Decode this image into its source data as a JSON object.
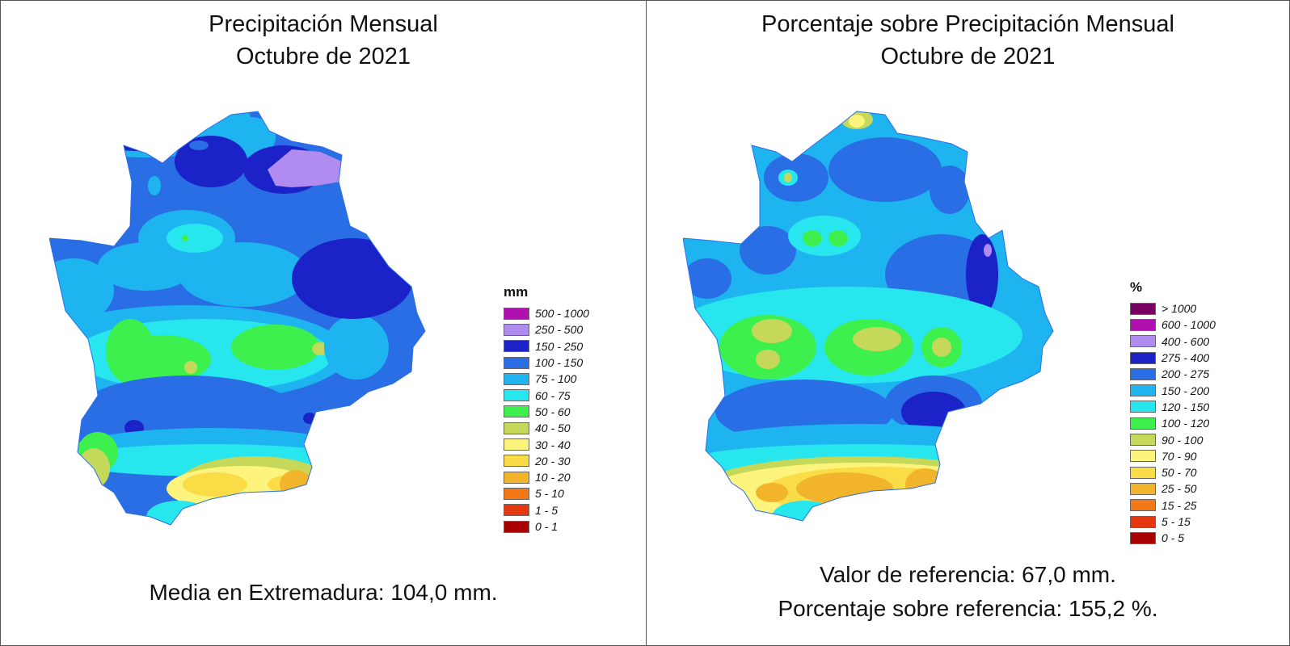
{
  "left": {
    "title_line1": "Precipitación Mensual",
    "title_line2": "Octubre de 2021",
    "legend_title": "mm",
    "legend": [
      {
        "label": "500 - 1000",
        "color": "#b010b0"
      },
      {
        "label": "250 - 500",
        "color": "#b18cf0"
      },
      {
        "label": "150 - 250",
        "color": "#1a22c8"
      },
      {
        "label": "100 - 150",
        "color": "#2a6ee6"
      },
      {
        "label": "75 - 100",
        "color": "#1eb4f0"
      },
      {
        "label": "60 - 75",
        "color": "#28e6ee"
      },
      {
        "label": "50 - 60",
        "color": "#3ef04e"
      },
      {
        "label": "40 - 50",
        "color": "#c6d85a"
      },
      {
        "label": "30 - 40",
        "color": "#fcf47c"
      },
      {
        "label": "20 - 30",
        "color": "#fadc46"
      },
      {
        "label": "10 - 20",
        "color": "#f2b42a"
      },
      {
        "label": "5 - 10",
        "color": "#f27818"
      },
      {
        "label": "1 - 5",
        "color": "#e63810"
      },
      {
        "label": "0 - 1",
        "color": "#a80000"
      }
    ],
    "footer": "Media en Extremadura: 104,0 mm."
  },
  "right": {
    "title_line1": "Porcentaje sobre Precipitación Mensual",
    "title_line2": "Octubre de 2021",
    "legend_title": "%",
    "legend": [
      {
        "label": "> 1000",
        "color": "#780060"
      },
      {
        "label": "600 - 1000",
        "color": "#b010b0"
      },
      {
        "label": "400 - 600",
        "color": "#b18cf0"
      },
      {
        "label": "275 - 400",
        "color": "#1a22c8"
      },
      {
        "label": "200 - 275",
        "color": "#2a6ee6"
      },
      {
        "label": "150 - 200",
        "color": "#1eb4f0"
      },
      {
        "label": "120 - 150",
        "color": "#28e6ee"
      },
      {
        "label": "100 - 120",
        "color": "#3ef04e"
      },
      {
        "label": "90 - 100",
        "color": "#c6d85a"
      },
      {
        "label": "70 - 90",
        "color": "#fcf47c"
      },
      {
        "label": "50 - 70",
        "color": "#fadc46"
      },
      {
        "label": "25 - 50",
        "color": "#f2b42a"
      },
      {
        "label": "15 - 25",
        "color": "#f27818"
      },
      {
        "label": "5 - 15",
        "color": "#e63810"
      },
      {
        "label": "0 - 5",
        "color": "#a80000"
      }
    ],
    "footer_line1": "Valor de referencia: 67,0 mm.",
    "footer_line2": "Porcentaje sobre referencia: 155,2 %."
  }
}
